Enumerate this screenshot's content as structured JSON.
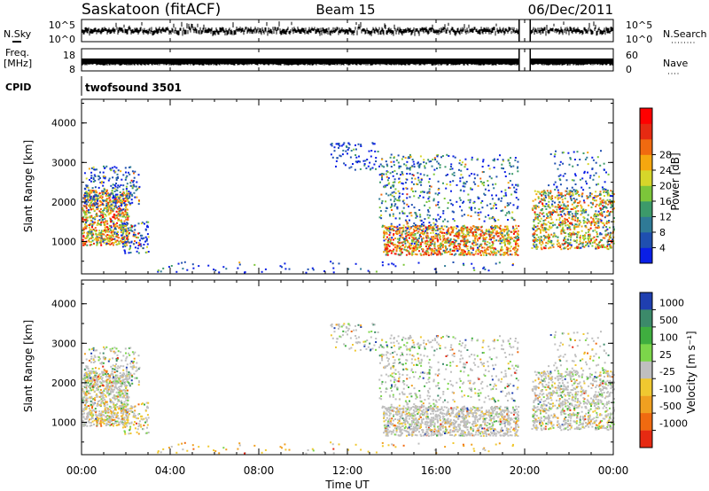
{
  "header": {
    "station": "Saskatoon (fitACF)",
    "beam": "Beam 15",
    "date": "06/Dec/2011"
  },
  "top_panels": {
    "nsky_label": "N.Sky",
    "nsky_ticks": [
      "10^5",
      "10^0"
    ],
    "nsearch_label": "N.Search",
    "freq_label_1": "Freq.",
    "freq_label_2": "[MHz]",
    "freq_ticks": [
      "18",
      "8"
    ],
    "nave_label": "Nave",
    "nave_ticks": [
      "60",
      "0"
    ],
    "cpid_label": "CPID",
    "cpid_value": "twofsound 3501"
  },
  "chart_data": [
    {
      "type": "heatmap",
      "name": "power",
      "ylabel": "Slant Range [km]",
      "ylim": [
        180,
        4600
      ],
      "yticks": [
        "1000",
        "2000",
        "3000",
        "4000"
      ],
      "xticks": [
        "00:00",
        "04:00",
        "08:00",
        "12:00",
        "16:00",
        "20:00",
        "00:00"
      ],
      "xlim_hours": [
        0,
        24
      ],
      "data_gap_hours": [
        19.75,
        20.25
      ],
      "colorbar": {
        "label": "Power [dB]",
        "tick_labels": [
          "4",
          "8",
          "12",
          "16",
          "20",
          "24",
          "28"
        ],
        "colors": [
          "#0a1fe6",
          "#1f4fb0",
          "#2f7a96",
          "#3c9a6a",
          "#7cc63a",
          "#d6d62a",
          "#f5a70f",
          "#f06a10",
          "#e62a12",
          "#ff0000"
        ]
      },
      "scatter_regions": [
        {
          "t": [
            0.0,
            2.2
          ],
          "range_km": [
            900,
            2400
          ],
          "dominant": "high",
          "note_colors": [
            "#e62a12",
            "#f06a10",
            "#f5a70f"
          ]
        },
        {
          "t": [
            13.5,
            19.7
          ],
          "range_km": [
            700,
            1400
          ],
          "dominant": "high",
          "note_colors": [
            "#e62a12",
            "#f06a10"
          ]
        },
        {
          "t": [
            20.3,
            24.0
          ],
          "range_km": [
            900,
            2400
          ],
          "dominant": "mixed",
          "note_colors": [
            "#f06a10",
            "#7cc63a",
            "#3c9a6a"
          ]
        }
      ]
    },
    {
      "type": "heatmap",
      "name": "velocity",
      "ylabel": "Slant Range [km]",
      "ylim": [
        180,
        4600
      ],
      "yticks": [
        "1000",
        "2000",
        "3000",
        "4000"
      ],
      "xticks": [
        "00:00",
        "04:00",
        "08:00",
        "12:00",
        "16:00",
        "20:00",
        "00:00"
      ],
      "xlabel": "Time UT",
      "colorbar": {
        "label": "Velocity [m s⁻¹]",
        "tick_labels": [
          "1000",
          "500",
          "100",
          "25",
          "-25",
          "-100",
          "-500",
          "-1000"
        ],
        "colors": [
          "#1f3fb0",
          "#3c8a6a",
          "#3fae3f",
          "#7cd64a",
          "#bfbfbf",
          "#f0c830",
          "#f0a020",
          "#f06a10",
          "#e62a12"
        ]
      }
    }
  ]
}
